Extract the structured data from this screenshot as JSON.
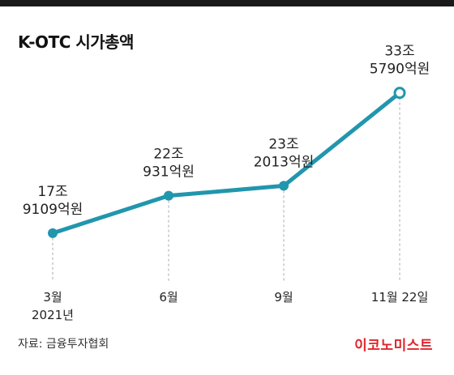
{
  "title": "K-OTC 시가총액",
  "source": "자료: 금융투자협회",
  "logo": "이코노미스트",
  "colors": {
    "line": "#2196ad",
    "text": "#222222",
    "guide": "#aaaaaa",
    "logo": "#e0262c",
    "bar": "#1a1a1a"
  },
  "chart_data": {
    "type": "line",
    "unit": "억원",
    "x": [
      "3월 2021년",
      "6월",
      "9월",
      "11월 22일"
    ],
    "values": [
      179109,
      220931,
      232013,
      335790
    ],
    "x_labels": [
      [
        "3월",
        "2021년"
      ],
      [
        "6월"
      ],
      [
        "9월"
      ],
      [
        "11월 22일"
      ]
    ],
    "data_labels": [
      [
        "17조",
        "9109억원"
      ],
      [
        "22조",
        "931억원"
      ],
      [
        "23조",
        "2013억원"
      ],
      [
        "33조",
        "5790억원"
      ]
    ],
    "series": [
      {
        "values": [
          179109,
          220931,
          232013,
          335790
        ]
      }
    ]
  }
}
